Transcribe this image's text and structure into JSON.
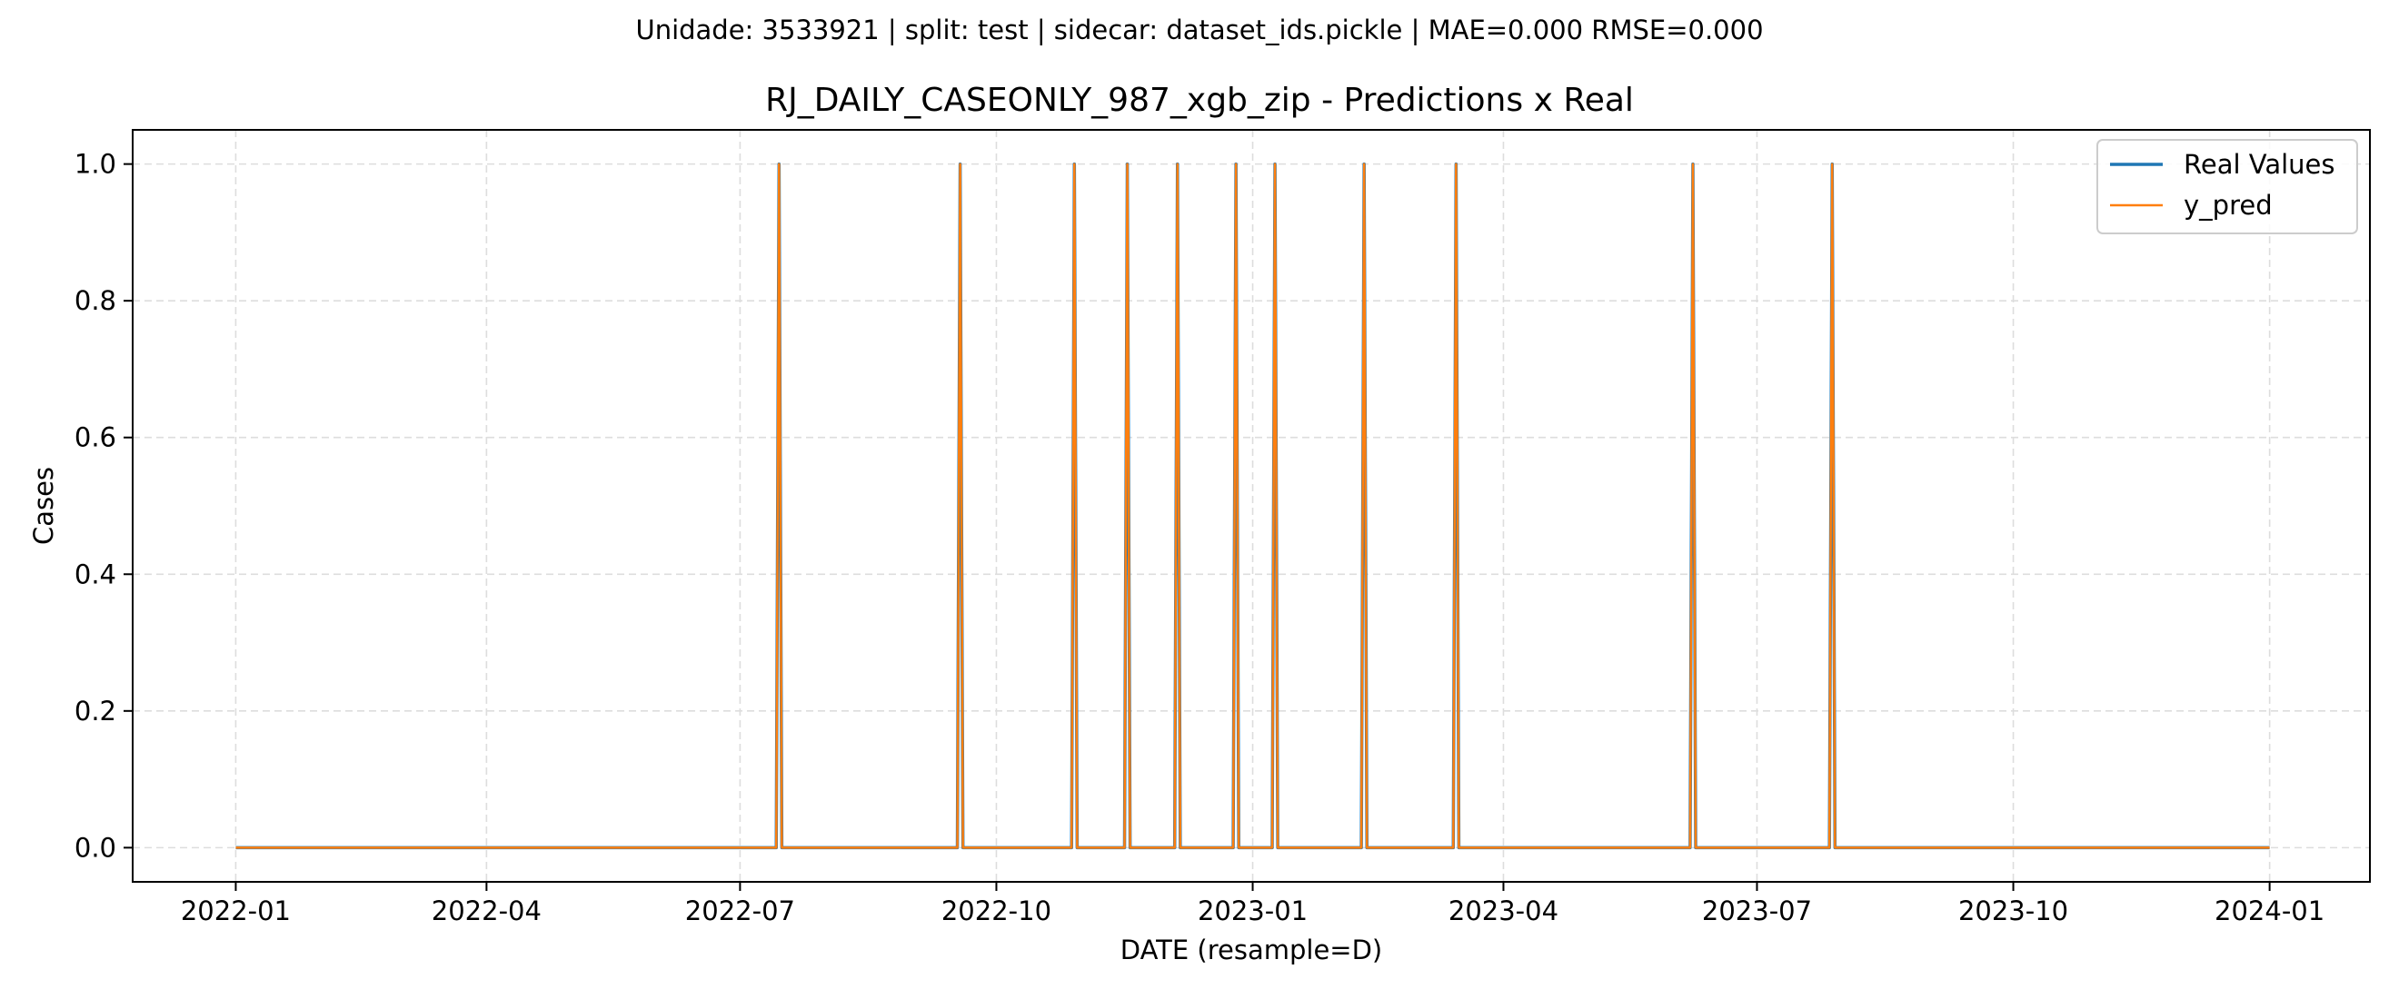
{
  "chart_data": {
    "type": "line",
    "suptitle": "Unidade: 3533921 | split: test | sidecar: dataset_ids.pickle | MAE=0.000  RMSE=0.000",
    "title": "RJ_DAILY_CASEONLY_987_xgb_zip - Predictions x Real",
    "xlabel": "DATE (resample=D)",
    "ylabel": "Cases",
    "x_range": [
      "2022-01-01",
      "2024-01-01"
    ],
    "xlim": [
      "2021-11-25",
      "2024-02-06"
    ],
    "ylim": [
      -0.05,
      1.05
    ],
    "x_ticks": [
      "2022-01",
      "2022-04",
      "2022-07",
      "2022-10",
      "2023-01",
      "2023-04",
      "2023-07",
      "2023-10",
      "2024-01"
    ],
    "y_ticks": [
      "0.0",
      "0.2",
      "0.4",
      "0.6",
      "0.8",
      "1.0"
    ],
    "grid": true,
    "legend_position": "top-right",
    "colors": {
      "real": "#1f77b4",
      "pred": "#ff7f0e"
    },
    "baseline_value": 0,
    "spike_value": 1,
    "spike_dates": [
      "2022-07-15",
      "2022-09-18",
      "2022-10-29",
      "2022-11-17",
      "2022-12-05",
      "2022-12-26",
      "2023-01-09",
      "2023-02-10",
      "2023-03-15",
      "2023-06-08",
      "2023-07-28"
    ],
    "series": [
      {
        "name": "Real Values",
        "color": "#1f77b4",
        "note": "0 everywhere except 1 on spike_dates"
      },
      {
        "name": "y_pred",
        "color": "#ff7f0e",
        "note": "identical to Real Values"
      }
    ]
  }
}
